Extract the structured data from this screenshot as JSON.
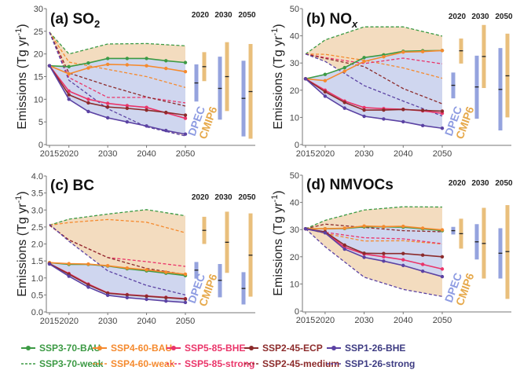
{
  "colors": {
    "SSP3-70": "#3c9a44",
    "SSP4-60": "#f58a2e",
    "SSP5-85": "#ea3469",
    "SSP2-45": "#8c2b2b",
    "SSP1-26": "#5b42a3",
    "band_orange": "#f3dcbf",
    "band_blue": "#cfd6ef",
    "DPEC": "#95a3de",
    "CMIP6": "#e9bf7c",
    "DPEC_text": "#8e9ce2",
    "CMIP6_text": "#e6a94c"
  },
  "legend": {
    "solid": [
      {
        "key": "SSP3-70",
        "label": "SSP3-70-BAU"
      },
      {
        "key": "SSP4-60",
        "label": "SSP4-60-BAU"
      },
      {
        "key": "SSP5-85",
        "label": "SSP5-85-BHE"
      },
      {
        "key": "SSP2-45",
        "label": "SSP2-45-ECP"
      },
      {
        "key": "SSP1-26",
        "label": "SSP1-26-BHE"
      }
    ],
    "dashed": [
      {
        "key": "SSP3-70",
        "label": "SSP3-70-weak"
      },
      {
        "key": "SSP4-60",
        "label": "SSP4-60-weak"
      },
      {
        "key": "SSP5-85",
        "label": "SSP5-85-strong"
      },
      {
        "key": "SSP2-45",
        "label": "SSP2-45-medium"
      },
      {
        "key": "SSP1-26",
        "label": "SSP1-26-strong"
      }
    ]
  },
  "chart_data": [
    {
      "type": "line",
      "title": "(a) SO",
      "title_sub": "2",
      "title_sub_italic": false,
      "ylabel": "Emissions (Tg yr",
      "ylabel_sup": "-1",
      "ylabel_end": ")",
      "ylim": [
        0,
        30
      ],
      "yticks": [
        0,
        5,
        10,
        15,
        20,
        25,
        30
      ],
      "ytick_labels": [
        "0",
        "5",
        "10",
        "15",
        "20",
        "25",
        "30"
      ],
      "xticks": [
        2015,
        2020,
        2030,
        2040,
        2050
      ],
      "xtick_labels": [
        "2015",
        "2020",
        "2030",
        "2040",
        "2050"
      ],
      "solid_x": [
        2015,
        2020,
        2025,
        2030,
        2035,
        2040,
        2045,
        2050
      ],
      "dashed_x": [
        2015,
        2020,
        2030,
        2040,
        2050
      ],
      "solid": {
        "SSP3-70": [
          17.4,
          17.2,
          18.0,
          19.0,
          19.0,
          19.0,
          18.5,
          18.1
        ],
        "SSP4-60": [
          17.4,
          15.6,
          16.9,
          17.7,
          17.6,
          17.4,
          16.8,
          16.1
        ],
        "SSP5-85": [
          17.4,
          11.8,
          10.0,
          9.1,
          8.6,
          8.2,
          7.0,
          5.8
        ],
        "SSP2-45": [
          17.4,
          11.0,
          9.2,
          8.3,
          8.0,
          7.6,
          7.1,
          6.5
        ],
        "SSP1-26": [
          17.4,
          10.0,
          7.3,
          5.9,
          5.0,
          4.1,
          3.1,
          2.3
        ]
      },
      "dashed": {
        "SSP3-70": [
          24.8,
          20.0,
          22.2,
          22.3,
          21.8
        ],
        "SSP4-60": [
          24.8,
          18.2,
          16.6,
          15.0,
          12.6
        ],
        "SSP5-85": [
          24.8,
          14.8,
          10.4,
          10.4,
          9.2
        ],
        "SSP2-45": [
          24.8,
          15.8,
          13.0,
          10.5,
          8.5
        ],
        "SSP1-26": [
          24.8,
          14.2,
          7.9,
          3.9,
          1.9
        ]
      },
      "range_years": [
        "2020",
        "2030",
        "2050"
      ],
      "ranges": {
        "DPEC": [
          [
            9.5,
            17.7,
            13.6
          ],
          [
            5.5,
            19.4,
            12.4
          ],
          [
            1.8,
            18.5,
            10.2
          ]
        ],
        "CMIP6": [
          [
            14.0,
            20.4,
            17.2
          ],
          [
            7.4,
            22.6,
            15.0
          ],
          [
            1.3,
            22.2,
            11.7
          ]
        ]
      },
      "source_labels": [
        "DPEC",
        "CMIP6"
      ]
    },
    {
      "type": "line",
      "title": "(b) NO",
      "title_sub": "x",
      "title_sub_italic": true,
      "ylabel": "Emissions (Tg yr",
      "ylabel_sup": "-1",
      "ylabel_end": ")",
      "ylim": [
        0,
        50
      ],
      "yticks": [
        0,
        10,
        20,
        30,
        40,
        50
      ],
      "ytick_labels": [
        "0",
        "10",
        "20",
        "30",
        "40",
        "50"
      ],
      "xticks": [
        2015,
        2020,
        2030,
        2040,
        2050
      ],
      "xtick_labels": [
        "2015",
        "2020",
        "2030",
        "2040",
        "2050"
      ],
      "solid_x": [
        2015,
        2020,
        2025,
        2030,
        2035,
        2040,
        2045,
        2050
      ],
      "dashed_x": [
        2015,
        2020,
        2030,
        2040,
        2050
      ],
      "solid": {
        "SSP3-70": [
          24.2,
          25.8,
          28.3,
          32.0,
          33.0,
          34.3,
          34.5,
          34.6
        ],
        "SSP4-60": [
          24.2,
          23.5,
          27.0,
          30.6,
          32.3,
          34.0,
          34.2,
          34.6
        ],
        "SSP5-85": [
          24.2,
          20.0,
          16.0,
          13.6,
          13.2,
          13.0,
          12.4,
          11.5
        ],
        "SSP2-45": [
          24.2,
          19.4,
          15.5,
          12.7,
          12.7,
          12.9,
          12.6,
          12.3
        ],
        "SSP1-26": [
          24.2,
          17.8,
          13.4,
          10.4,
          9.4,
          8.4,
          7.0,
          6.0
        ]
      },
      "dashed": {
        "SSP3-70": [
          33.3,
          38.5,
          43.3,
          43.3,
          39.9
        ],
        "SSP4-60": [
          33.3,
          33.2,
          31.0,
          28.2,
          24.4
        ],
        "SSP5-85": [
          33.3,
          32.0,
          29.8,
          31.8,
          29.7
        ],
        "SSP2-45": [
          33.3,
          31.7,
          28.7,
          20.6,
          15.0
        ],
        "SSP1-26": [
          33.3,
          30.6,
          21.7,
          16.0,
          10.5
        ]
      },
      "range_years": [
        "2020",
        "2030",
        "2050"
      ],
      "ranges": {
        "DPEC": [
          [
            17.0,
            26.5,
            21.8
          ],
          [
            9.5,
            32.7,
            21.2
          ],
          [
            5.2,
            35.5,
            20.3
          ]
        ],
        "CMIP6": [
          [
            29.8,
            39.0,
            34.5
          ],
          [
            20.8,
            44.0,
            32.4
          ],
          [
            10.0,
            40.8,
            25.3
          ]
        ]
      },
      "source_labels": [
        "DPEC",
        "CMIP6"
      ]
    },
    {
      "type": "line",
      "title": "(c) BC",
      "title_sub": "",
      "title_sub_italic": false,
      "ylabel": "Emissions (Tg yr",
      "ylabel_sup": "-1",
      "ylabel_end": ")",
      "ylim": [
        0,
        4
      ],
      "yticks": [
        0,
        0.5,
        1,
        1.5,
        2,
        2.5,
        3,
        3.5,
        4
      ],
      "ytick_labels": [
        "0.0",
        "0.5",
        "1.0",
        "1.5",
        "2.0",
        "2.5",
        "3.0",
        "3.5",
        "4.0"
      ],
      "xticks": [
        2015,
        2020,
        2030,
        2040,
        2050
      ],
      "xtick_labels": [
        "2015",
        "2020",
        "2030",
        "2040",
        "2050"
      ],
      "solid_x": [
        2015,
        2020,
        2025,
        2030,
        2035,
        2040,
        2045,
        2050
      ],
      "dashed_x": [
        2015,
        2020,
        2030,
        2040,
        2050
      ],
      "solid": {
        "SSP3-70": [
          1.45,
          1.4,
          1.4,
          1.35,
          1.27,
          1.21,
          1.14,
          1.07
        ],
        "SSP4-60": [
          1.45,
          1.42,
          1.41,
          1.36,
          1.29,
          1.24,
          1.17,
          1.11
        ],
        "SSP5-85": [
          1.42,
          1.13,
          0.82,
          0.56,
          0.51,
          0.47,
          0.43,
          0.39
        ],
        "SSP2-45": [
          1.42,
          1.11,
          0.8,
          0.55,
          0.5,
          0.46,
          0.42,
          0.38
        ],
        "SSP1-26": [
          1.41,
          1.05,
          0.73,
          0.49,
          0.42,
          0.37,
          0.32,
          0.28
        ]
      },
      "dashed": {
        "SSP3-70": [
          2.55,
          2.73,
          2.88,
          3.01,
          2.83
        ],
        "SSP4-60": [
          2.55,
          2.63,
          2.72,
          2.64,
          2.33
        ],
        "SSP5-85": [
          2.55,
          2.12,
          1.6,
          1.48,
          1.34
        ],
        "SSP2-45": [
          2.55,
          2.12,
          1.6,
          1.28,
          1.1
        ],
        "SSP1-26": [
          2.58,
          2.08,
          1.21,
          0.78,
          0.5
        ]
      },
      "range_years": [
        "2020",
        "2030",
        "2050"
      ],
      "ranges": {
        "DPEC": [
          [
            0.98,
            1.47,
            1.23
          ],
          [
            0.43,
            1.41,
            0.93
          ],
          [
            0.22,
            1.17,
            0.69
          ]
        ],
        "CMIP6": [
          [
            2.0,
            2.8,
            2.4
          ],
          [
            1.15,
            2.95,
            2.05
          ],
          [
            0.45,
            2.9,
            1.67
          ]
        ]
      },
      "source_labels": [
        "DPEC",
        "CMIP6"
      ]
    },
    {
      "type": "line",
      "title": "(d) NMVOCs",
      "title_sub": "",
      "title_sub_italic": false,
      "ylabel": "Emissions (Tg yr",
      "ylabel_sup": "-1",
      "ylabel_end": ")",
      "ylim": [
        0,
        50
      ],
      "yticks": [
        0,
        10,
        20,
        30,
        40,
        50
      ],
      "ytick_labels": [
        "0",
        "10",
        "20",
        "30",
        "40",
        "50"
      ],
      "xticks": [
        2015,
        2020,
        2030,
        2040,
        2050
      ],
      "xtick_labels": [
        "2015",
        "2020",
        "2030",
        "2040",
        "2050"
      ],
      "solid_x": [
        2015,
        2020,
        2025,
        2030,
        2035,
        2040,
        2045,
        2050
      ],
      "dashed_x": [
        2015,
        2020,
        2030,
        2040,
        2050
      ],
      "solid": {
        "SSP3-70": [
          30.3,
          30.3,
          30.4,
          31.0,
          31.0,
          30.9,
          30.3,
          29.6
        ],
        "SSP4-60": [
          30.3,
          30.3,
          30.5,
          31.3,
          31.1,
          31.2,
          30.5,
          29.9
        ],
        "SSP5-85": [
          30.3,
          29.0,
          23.5,
          21.0,
          20.0,
          18.9,
          17.2,
          15.5
        ],
        "SSP2-45": [
          30.3,
          29.2,
          24.3,
          21.3,
          21.2,
          21.2,
          20.6,
          20.0
        ],
        "SSP1-26": [
          30.3,
          28.8,
          22.8,
          19.8,
          18.4,
          16.8,
          14.7,
          12.7
        ]
      },
      "dashed": {
        "SSP3-70": [
          30.3,
          33.4,
          37.2,
          38.4,
          38.3
        ],
        "SSP4-60": [
          30.3,
          28.6,
          25.8,
          25.9,
          24.7
        ],
        "SSP5-85": [
          30.3,
          29.0,
          27.0,
          26.6,
          24.8
        ],
        "SSP2-45": [
          30.3,
          32.0,
          30.8,
          29.6,
          29.2
        ],
        "SSP1-26": [
          30.3,
          23.7,
          12.5,
          8.0,
          5.4
        ]
      },
      "range_years": [
        "2020",
        "2030",
        "2050"
      ],
      "ranges": {
        "DPEC": [
          [
            28.2,
            31.0,
            29.6
          ],
          [
            19.0,
            32.0,
            25.5
          ],
          [
            12.0,
            30.5,
            21.3
          ]
        ],
        "CMIP6": [
          [
            23.0,
            34.0,
            28.5
          ],
          [
            12.0,
            38.0,
            24.9
          ],
          [
            4.5,
            39.0,
            21.9
          ]
        ]
      },
      "source_labels": [
        "DPEC",
        "CMIP6"
      ]
    }
  ]
}
